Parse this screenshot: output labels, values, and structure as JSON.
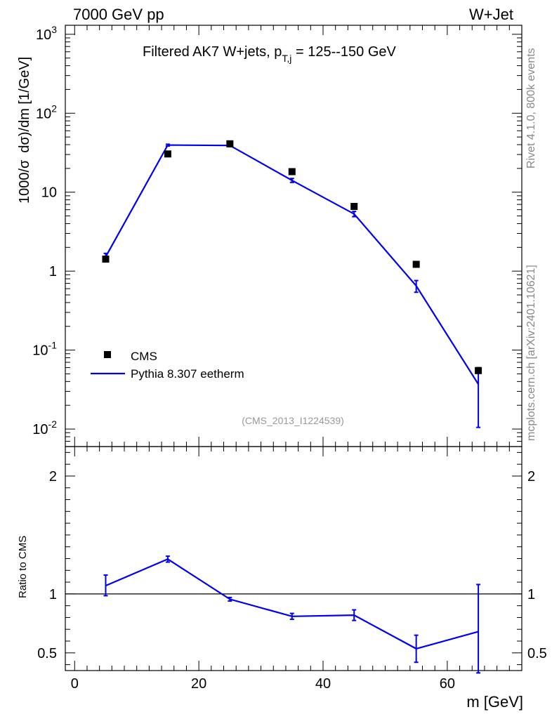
{
  "header": {
    "left": "7000 GeV pp",
    "right": "W+Jet"
  },
  "title": {
    "main": "Filtered AK7 W+jets, p",
    "sub": "T,j",
    "rest": " = 125--150 GeV"
  },
  "side_labels": {
    "rivet": "Rivet 4.1.0,  800k events",
    "mcplots": "mcplots.cern.ch [arXiv:2401.10621]"
  },
  "analysis_id": "(CMS_2013_I1224539)",
  "legend": {
    "data_label": "CMS",
    "mc_label": "Pythia 8.307 eetherm"
  },
  "colors": {
    "data": "#000000",
    "mc": "#0000ee",
    "side": "#888888"
  },
  "chart_data": [
    {
      "type": "scatter",
      "panel": "main",
      "ylabel_pre": "1000/σ",
      "ylabel_post": "dσ)/dm [1/GeV]",
      "yscale": "log",
      "ylim": [
        0.006,
        1300
      ],
      "xlim": [
        -1.5,
        72
      ],
      "y_ticklabels": [
        "10^-2",
        "10^-1",
        "1",
        "10",
        "10^2",
        "10^3"
      ],
      "x": [
        5,
        15,
        25,
        35,
        45,
        55,
        65
      ],
      "series": [
        {
          "name": "CMS",
          "style": "markers",
          "values": [
            1.42,
            30.5,
            41.0,
            18.2,
            6.6,
            1.22,
            0.055
          ]
        },
        {
          "name": "Pythia 8.307 eetherm",
          "style": "line",
          "values": [
            1.52,
            39.5,
            39.0,
            14.1,
            5.3,
            0.65,
            0.037
          ],
          "err_low": [
            1.38,
            38.4,
            37.8,
            13.3,
            4.9,
            0.54,
            0.0105
          ],
          "err_high": [
            1.68,
            40.5,
            40.2,
            14.9,
            5.7,
            0.76,
            0.06
          ]
        }
      ]
    },
    {
      "type": "line",
      "panel": "ratio",
      "ylabel": "Ratio to CMS",
      "ylim": [
        0.35,
        2.25
      ],
      "yticks": [
        0.5,
        1,
        2
      ],
      "y_ticklabels": [
        "0.5",
        "1",
        "2"
      ],
      "xlim": [
        -1.5,
        72
      ],
      "xticks": [
        0,
        20,
        40,
        60
      ],
      "x_ticklabels": [
        "0",
        "20",
        "40",
        "60"
      ],
      "xlabel": "m [GeV]",
      "x": [
        5,
        15,
        25,
        35,
        45,
        55,
        65
      ],
      "series": [
        {
          "name": "Pythia 8.307 eetherm / CMS",
          "values": [
            1.07,
            1.295,
            0.955,
            0.81,
            0.82,
            0.535,
            0.68
          ],
          "err_low": [
            0.985,
            1.27,
            0.94,
            0.785,
            0.775,
            0.42,
            0.33
          ],
          "err_high": [
            1.16,
            1.32,
            0.97,
            0.835,
            0.865,
            0.65,
            1.08
          ]
        }
      ]
    }
  ]
}
